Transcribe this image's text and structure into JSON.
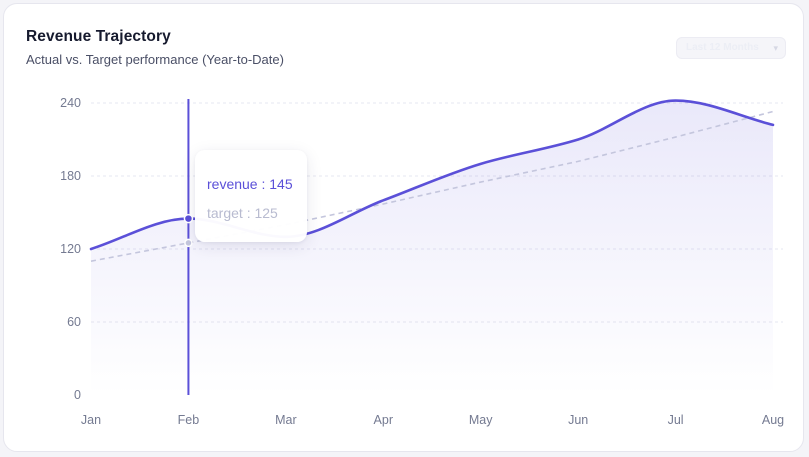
{
  "header": {
    "title": "Revenue Trajectory",
    "subtitle": "Actual vs. Target performance (Year-to-Date)",
    "range_label": "Last 12 Months",
    "range_icon": "chevron-down-icon"
  },
  "colors": {
    "revenue": "#5b50d8",
    "target": "#c4c6dd",
    "grid": "#e6e7f0",
    "cursor": "#5b50d8"
  },
  "chart_data": {
    "type": "area",
    "title": "Revenue Trajectory",
    "categories": [
      "Jan",
      "Feb",
      "Mar",
      "Apr",
      "May",
      "Jun",
      "Jul",
      "Aug"
    ],
    "series": [
      {
        "name": "revenue",
        "values": [
          120,
          145,
          130,
          160,
          190,
          210,
          242,
          222
        ],
        "style": "solid-area"
      },
      {
        "name": "target",
        "values": [
          110,
          125,
          140,
          157,
          175,
          192,
          212,
          233
        ],
        "style": "dashed"
      }
    ],
    "yticks": [
      0,
      60,
      120,
      180,
      240
    ],
    "ylim": [
      0,
      240
    ],
    "xlabel": "",
    "ylabel": "",
    "grid": true,
    "tooltip": {
      "category": "Feb",
      "revenue_text": "revenue : 145",
      "target_text": "target : 125"
    }
  }
}
